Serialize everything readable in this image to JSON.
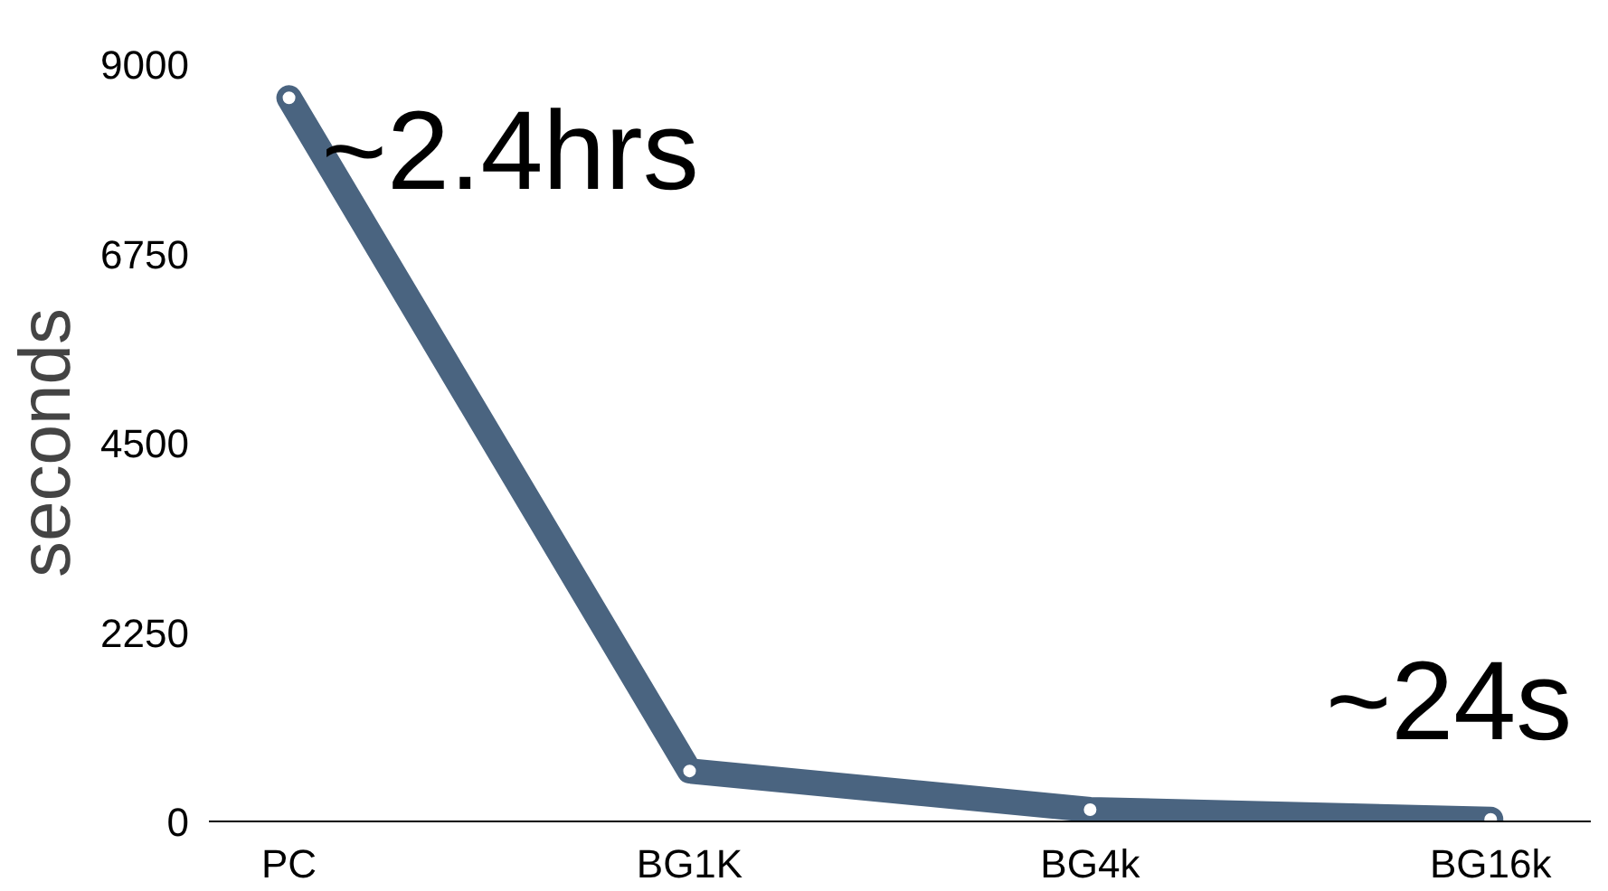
{
  "chart_data": {
    "type": "line",
    "ylabel": "seconds",
    "categories": [
      "PC",
      "BG1K",
      "BG4k",
      "BG16k"
    ],
    "series": [
      {
        "color": "#4a6480",
        "values": [
          8600,
          600,
          140,
          24
        ]
      }
    ],
    "ylim": [
      0,
      9000
    ],
    "yticks": [
      0,
      2250,
      4500,
      6750,
      9000
    ],
    "grid": false,
    "marker": "circle",
    "line_style": "solid",
    "annotations": [
      {
        "text": "~2.4hrs",
        "x": "PC",
        "y": 8600
      },
      {
        "text": "~24s",
        "x": "BG16k",
        "y": 24
      }
    ]
  }
}
